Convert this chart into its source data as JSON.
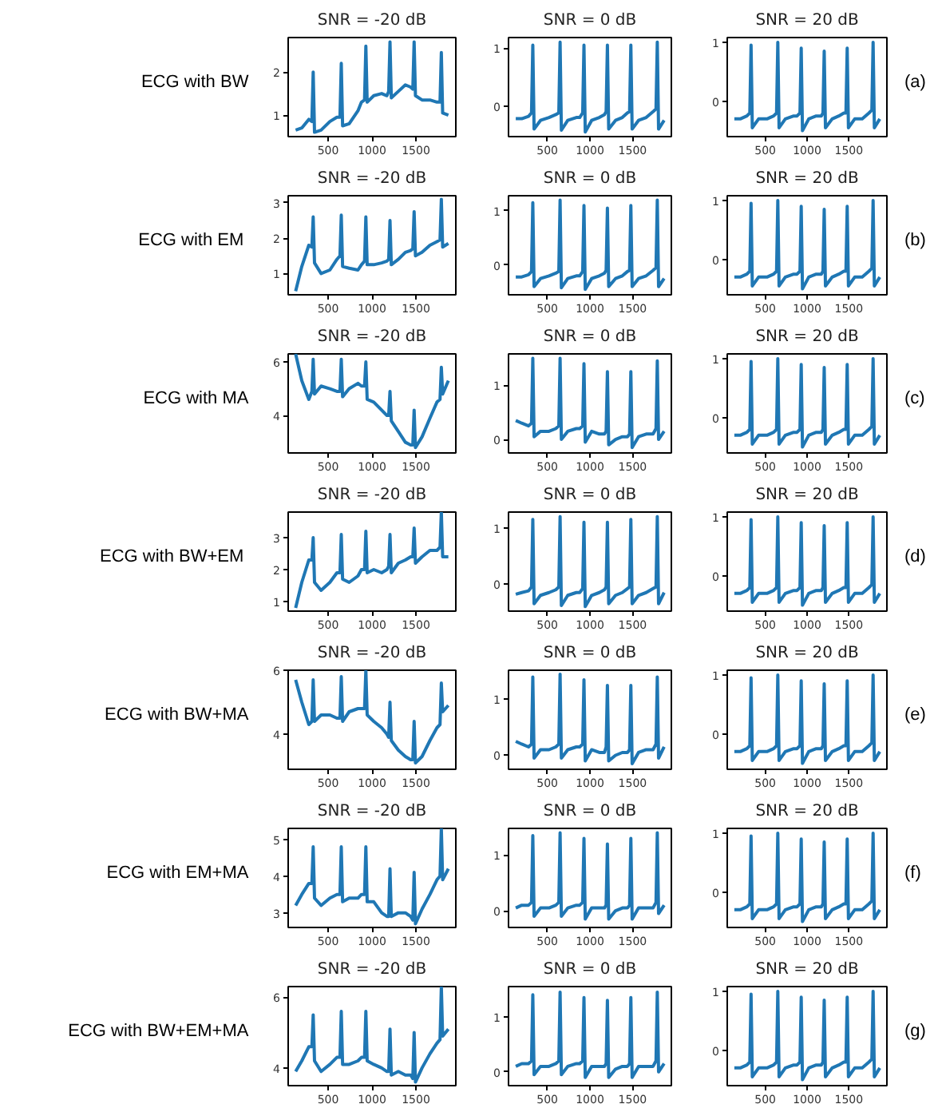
{
  "chart_data": [
    {
      "type": "line",
      "title": "SNR = -20 dB",
      "annotations": [
        "ECG with BW"
      ],
      "color": "#1f77b4",
      "xlim": [
        45,
        1955
      ],
      "xticks": [
        500,
        1000,
        1500
      ],
      "ylim": [
        0.5,
        2.8
      ],
      "yticks": [
        1,
        2
      ],
      "x": [
        130,
        200,
        280,
        315,
        330,
        345,
        420,
        520,
        600,
        635,
        650,
        665,
        740,
        840,
        880,
        915,
        930,
        945,
        1020,
        1110,
        1170,
        1190,
        1205,
        1220,
        1300,
        1380,
        1440,
        1465,
        1480,
        1495,
        1570,
        1660,
        1740,
        1775,
        1790,
        1805,
        1870
      ],
      "values": [
        0.65,
        0.7,
        0.9,
        0.85,
        2.0,
        0.6,
        0.65,
        0.85,
        0.95,
        0.95,
        2.2,
        0.75,
        0.8,
        1.1,
        1.3,
        1.35,
        2.6,
        1.3,
        1.45,
        1.5,
        1.45,
        1.55,
        2.7,
        1.4,
        1.55,
        1.7,
        1.65,
        1.6,
        2.7,
        1.45,
        1.35,
        1.35,
        1.3,
        1.3,
        2.45,
        1.05,
        1.0
      ]
    },
    {
      "type": "line",
      "title": "SNR = 0 dB",
      "color": "#1f77b4",
      "xlim": [
        45,
        1955
      ],
      "xticks": [
        500,
        1000,
        1500
      ],
      "ylim": [
        -0.53,
        1.18
      ],
      "yticks": [
        0,
        1
      ],
      "x": [
        130,
        200,
        280,
        315,
        330,
        345,
        420,
        520,
        600,
        635,
        650,
        665,
        740,
        840,
        880,
        915,
        930,
        945,
        1020,
        1110,
        1170,
        1190,
        1205,
        1220,
        1300,
        1380,
        1440,
        1465,
        1480,
        1495,
        1570,
        1660,
        1740,
        1775,
        1790,
        1805,
        1870
      ],
      "values": [
        -0.22,
        -0.22,
        -0.18,
        -0.12,
        1.05,
        -0.4,
        -0.25,
        -0.2,
        -0.15,
        -0.12,
        1.1,
        -0.42,
        -0.25,
        -0.2,
        -0.2,
        -0.12,
        1.05,
        -0.45,
        -0.25,
        -0.2,
        -0.15,
        -0.1,
        1.05,
        -0.4,
        -0.25,
        -0.2,
        -0.12,
        -0.1,
        1.05,
        -0.4,
        -0.25,
        -0.2,
        -0.1,
        -0.05,
        1.1,
        -0.4,
        -0.25
      ]
    },
    {
      "type": "line",
      "title": "SNR = 20 dB",
      "annotations": [
        "(a)"
      ],
      "color": "#1f77b4",
      "xlim": [
        45,
        1955
      ],
      "xticks": [
        500,
        1000,
        1500
      ],
      "ylim": [
        -0.6,
        1.08
      ],
      "yticks": [
        0,
        1
      ],
      "x": [
        130,
        200,
        280,
        315,
        330,
        345,
        420,
        520,
        600,
        635,
        650,
        665,
        740,
        840,
        880,
        915,
        930,
        945,
        1020,
        1110,
        1170,
        1190,
        1205,
        1220,
        1300,
        1380,
        1440,
        1465,
        1480,
        1495,
        1570,
        1660,
        1740,
        1775,
        1790,
        1805,
        1870
      ],
      "values": [
        -0.3,
        -0.3,
        -0.25,
        -0.2,
        0.95,
        -0.45,
        -0.3,
        -0.3,
        -0.25,
        -0.2,
        1.0,
        -0.45,
        -0.3,
        -0.25,
        -0.25,
        -0.2,
        0.9,
        -0.5,
        -0.3,
        -0.25,
        -0.25,
        -0.2,
        0.85,
        -0.45,
        -0.3,
        -0.25,
        -0.2,
        -0.2,
        0.9,
        -0.45,
        -0.3,
        -0.3,
        -0.2,
        -0.15,
        1.0,
        -0.45,
        -0.3
      ]
    },
    {
      "type": "line",
      "title": "SNR = -20 dB",
      "annotations": [
        "ECG  with EM"
      ],
      "color": "#1f77b4",
      "xlim": [
        45,
        1955
      ],
      "xticks": [
        500,
        1000,
        1500
      ],
      "ylim": [
        0.4,
        3.2
      ],
      "yticks": [
        1,
        2,
        3
      ],
      "x": [
        130,
        200,
        280,
        315,
        330,
        345,
        420,
        520,
        600,
        635,
        650,
        665,
        740,
        840,
        880,
        915,
        930,
        945,
        1020,
        1110,
        1170,
        1190,
        1205,
        1220,
        1300,
        1380,
        1440,
        1465,
        1480,
        1495,
        1570,
        1660,
        1740,
        1775,
        1790,
        1805,
        1870
      ],
      "values": [
        0.5,
        1.2,
        1.8,
        1.75,
        2.6,
        1.3,
        1.0,
        1.1,
        1.4,
        1.5,
        2.65,
        1.2,
        1.15,
        1.1,
        1.25,
        1.35,
        2.6,
        1.25,
        1.25,
        1.3,
        1.35,
        1.4,
        2.5,
        1.25,
        1.4,
        1.6,
        1.65,
        1.7,
        2.75,
        1.5,
        1.6,
        1.8,
        1.9,
        1.95,
        3.1,
        1.75,
        1.85
      ]
    },
    {
      "type": "line",
      "title": "SNR = 0 dB",
      "color": "#1f77b4",
      "xlim": [
        45,
        1955
      ],
      "xticks": [
        500,
        1000,
        1500
      ],
      "ylim": [
        -0.55,
        1.28
      ],
      "yticks": [
        0,
        1
      ],
      "x": [
        130,
        200,
        280,
        315,
        330,
        345,
        420,
        520,
        600,
        635,
        650,
        665,
        740,
        840,
        880,
        915,
        930,
        945,
        1020,
        1110,
        1170,
        1190,
        1205,
        1220,
        1300,
        1380,
        1440,
        1465,
        1480,
        1495,
        1570,
        1660,
        1740,
        1775,
        1790,
        1805,
        1870
      ],
      "values": [
        -0.22,
        -0.22,
        -0.18,
        -0.12,
        1.15,
        -0.4,
        -0.25,
        -0.2,
        -0.15,
        -0.12,
        1.2,
        -0.42,
        -0.25,
        -0.2,
        -0.2,
        -0.12,
        1.1,
        -0.45,
        -0.25,
        -0.2,
        -0.15,
        -0.1,
        1.05,
        -0.4,
        -0.25,
        -0.2,
        -0.12,
        -0.1,
        1.1,
        -0.4,
        -0.25,
        -0.2,
        -0.1,
        -0.05,
        1.2,
        -0.4,
        -0.25
      ]
    },
    {
      "type": "line",
      "title": "SNR = 20 dB",
      "annotations": [
        "(b)"
      ],
      "color": "#1f77b4",
      "xlim": [
        45,
        1955
      ],
      "xticks": [
        500,
        1000,
        1500
      ],
      "ylim": [
        -0.6,
        1.08
      ],
      "yticks": [
        0,
        1
      ],
      "x": [
        130,
        200,
        280,
        315,
        330,
        345,
        420,
        520,
        600,
        635,
        650,
        665,
        740,
        840,
        880,
        915,
        930,
        945,
        1020,
        1110,
        1170,
        1190,
        1205,
        1220,
        1300,
        1380,
        1440,
        1465,
        1480,
        1495,
        1570,
        1660,
        1740,
        1775,
        1790,
        1805,
        1870
      ],
      "values": [
        -0.3,
        -0.3,
        -0.25,
        -0.2,
        0.95,
        -0.45,
        -0.3,
        -0.3,
        -0.25,
        -0.2,
        1.0,
        -0.45,
        -0.3,
        -0.25,
        -0.25,
        -0.2,
        0.9,
        -0.5,
        -0.3,
        -0.25,
        -0.25,
        -0.2,
        0.85,
        -0.45,
        -0.3,
        -0.25,
        -0.2,
        -0.2,
        0.9,
        -0.45,
        -0.3,
        -0.3,
        -0.2,
        -0.15,
        1.0,
        -0.45,
        -0.3
      ]
    },
    {
      "type": "line",
      "title": "SNR = -20 dB",
      "annotations": [
        "ECG with MA"
      ],
      "color": "#1f77b4",
      "xlim": [
        45,
        1955
      ],
      "xticks": [
        500,
        1000,
        1500
      ],
      "ylim": [
        2.6,
        6.3
      ],
      "yticks": [
        4,
        6
      ],
      "x": [
        130,
        200,
        280,
        315,
        330,
        345,
        420,
        520,
        600,
        635,
        650,
        665,
        740,
        840,
        880,
        915,
        930,
        945,
        1020,
        1110,
        1170,
        1190,
        1205,
        1220,
        1300,
        1380,
        1440,
        1465,
        1480,
        1495,
        1570,
        1660,
        1740,
        1775,
        1790,
        1805,
        1870
      ],
      "values": [
        6.3,
        5.3,
        4.6,
        4.9,
        6.1,
        4.8,
        5.1,
        5.0,
        4.9,
        4.9,
        6.1,
        4.7,
        5.0,
        5.2,
        5.1,
        5.1,
        6.0,
        4.6,
        4.5,
        4.2,
        4.0,
        4.0,
        4.9,
        3.8,
        3.4,
        3.0,
        2.9,
        2.9,
        4.2,
        2.8,
        3.2,
        3.9,
        4.5,
        4.6,
        5.8,
        4.8,
        5.3
      ]
    },
    {
      "type": "line",
      "title": "SNR = 0 dB",
      "color": "#1f77b4",
      "xlim": [
        45,
        1955
      ],
      "xticks": [
        500,
        1000,
        1500
      ],
      "ylim": [
        -0.25,
        1.58
      ],
      "yticks": [
        0,
        1
      ],
      "x": [
        130,
        200,
        280,
        315,
        330,
        345,
        420,
        520,
        600,
        635,
        650,
        665,
        740,
        840,
        880,
        915,
        930,
        945,
        1020,
        1110,
        1170,
        1190,
        1205,
        1220,
        1300,
        1380,
        1440,
        1465,
        1480,
        1495,
        1570,
        1660,
        1740,
        1775,
        1790,
        1805,
        1870
      ],
      "values": [
        0.35,
        0.3,
        0.25,
        0.3,
        1.5,
        0.05,
        0.15,
        0.15,
        0.2,
        0.25,
        1.5,
        0.0,
        0.15,
        0.2,
        0.2,
        0.25,
        1.4,
        -0.05,
        0.15,
        0.1,
        0.1,
        0.15,
        1.25,
        -0.1,
        0.0,
        0.05,
        0.05,
        0.1,
        1.25,
        -0.15,
        0.05,
        0.1,
        0.1,
        0.2,
        1.45,
        0.0,
        0.15
      ]
    },
    {
      "type": "line",
      "title": "SNR = 20 dB",
      "annotations": [
        "(c)"
      ],
      "color": "#1f77b4",
      "xlim": [
        45,
        1955
      ],
      "xticks": [
        500,
        1000,
        1500
      ],
      "ylim": [
        -0.6,
        1.08
      ],
      "yticks": [
        0,
        1
      ],
      "x": [
        130,
        200,
        280,
        315,
        330,
        345,
        420,
        520,
        600,
        635,
        650,
        665,
        740,
        840,
        880,
        915,
        930,
        945,
        1020,
        1110,
        1170,
        1190,
        1205,
        1220,
        1300,
        1380,
        1440,
        1465,
        1480,
        1495,
        1570,
        1660,
        1740,
        1775,
        1790,
        1805,
        1870
      ],
      "values": [
        -0.3,
        -0.3,
        -0.25,
        -0.2,
        0.95,
        -0.45,
        -0.3,
        -0.3,
        -0.25,
        -0.2,
        1.0,
        -0.45,
        -0.3,
        -0.25,
        -0.25,
        -0.2,
        0.9,
        -0.5,
        -0.3,
        -0.25,
        -0.25,
        -0.2,
        0.85,
        -0.45,
        -0.3,
        -0.25,
        -0.2,
        -0.2,
        0.9,
        -0.45,
        -0.3,
        -0.3,
        -0.2,
        -0.15,
        1.0,
        -0.45,
        -0.3
      ]
    },
    {
      "type": "line",
      "title": "SNR = -20 dB",
      "annotations": [
        "ECG  with BW+EM"
      ],
      "color": "#1f77b4",
      "xlim": [
        45,
        1955
      ],
      "xticks": [
        500,
        1000,
        1500
      ],
      "ylim": [
        0.7,
        3.8
      ],
      "yticks": [
        1,
        2,
        3
      ],
      "x": [
        130,
        200,
        280,
        315,
        330,
        345,
        420,
        520,
        600,
        635,
        650,
        665,
        740,
        840,
        880,
        915,
        930,
        945,
        1020,
        1110,
        1170,
        1190,
        1205,
        1220,
        1300,
        1380,
        1440,
        1465,
        1480,
        1495,
        1570,
        1660,
        1740,
        1775,
        1790,
        1805,
        1870
      ],
      "values": [
        0.8,
        1.6,
        2.3,
        2.3,
        3.0,
        1.6,
        1.35,
        1.6,
        1.9,
        1.9,
        3.1,
        1.7,
        1.6,
        1.8,
        2.0,
        2.0,
        3.2,
        1.9,
        2.0,
        1.9,
        2.0,
        2.1,
        3.1,
        1.9,
        2.2,
        2.3,
        2.4,
        2.4,
        3.3,
        2.2,
        2.4,
        2.6,
        2.6,
        2.7,
        3.8,
        2.4,
        2.4
      ]
    },
    {
      "type": "line",
      "title": "SNR = 0 dB",
      "color": "#1f77b4",
      "xlim": [
        45,
        1955
      ],
      "xticks": [
        500,
        1000,
        1500
      ],
      "ylim": [
        -0.48,
        1.28
      ],
      "yticks": [
        0,
        1
      ],
      "x": [
        130,
        200,
        280,
        315,
        330,
        345,
        420,
        520,
        600,
        635,
        650,
        665,
        740,
        840,
        880,
        915,
        930,
        945,
        1020,
        1110,
        1170,
        1190,
        1205,
        1220,
        1300,
        1380,
        1440,
        1465,
        1480,
        1495,
        1570,
        1660,
        1740,
        1775,
        1790,
        1805,
        1870
      ],
      "values": [
        -0.18,
        -0.15,
        -0.12,
        -0.05,
        1.15,
        -0.35,
        -0.2,
        -0.15,
        -0.1,
        -0.05,
        1.2,
        -0.38,
        -0.2,
        -0.15,
        -0.15,
        -0.08,
        1.1,
        -0.4,
        -0.2,
        -0.15,
        -0.1,
        -0.05,
        1.1,
        -0.35,
        -0.2,
        -0.15,
        -0.08,
        -0.05,
        1.15,
        -0.35,
        -0.2,
        -0.15,
        -0.08,
        -0.05,
        1.2,
        -0.35,
        -0.15
      ]
    },
    {
      "type": "line",
      "title": "SNR = 20 dB",
      "annotations": [
        "(d)"
      ],
      "color": "#1f77b4",
      "xlim": [
        45,
        1955
      ],
      "xticks": [
        500,
        1000,
        1500
      ],
      "ylim": [
        -0.6,
        1.08
      ],
      "yticks": [
        0,
        1
      ],
      "x": [
        130,
        200,
        280,
        315,
        330,
        345,
        420,
        520,
        600,
        635,
        650,
        665,
        740,
        840,
        880,
        915,
        930,
        945,
        1020,
        1110,
        1170,
        1190,
        1205,
        1220,
        1300,
        1380,
        1440,
        1465,
        1480,
        1495,
        1570,
        1660,
        1740,
        1775,
        1790,
        1805,
        1870
      ],
      "values": [
        -0.3,
        -0.3,
        -0.25,
        -0.2,
        0.95,
        -0.45,
        -0.3,
        -0.3,
        -0.25,
        -0.2,
        1.0,
        -0.45,
        -0.3,
        -0.25,
        -0.25,
        -0.2,
        0.9,
        -0.5,
        -0.3,
        -0.25,
        -0.25,
        -0.2,
        0.85,
        -0.45,
        -0.3,
        -0.25,
        -0.2,
        -0.2,
        0.9,
        -0.45,
        -0.3,
        -0.3,
        -0.2,
        -0.15,
        1.0,
        -0.45,
        -0.3
      ]
    },
    {
      "type": "line",
      "title": "SNR = -20 dB",
      "annotations": [
        "ECG with BW+MA"
      ],
      "color": "#1f77b4",
      "xlim": [
        45,
        1955
      ],
      "xticks": [
        500,
        1000,
        1500
      ],
      "ylim": [
        2.9,
        6.0
      ],
      "yticks": [
        4,
        6
      ],
      "x": [
        130,
        200,
        280,
        315,
        330,
        345,
        420,
        520,
        600,
        635,
        650,
        665,
        740,
        840,
        880,
        915,
        930,
        945,
        1020,
        1110,
        1170,
        1190,
        1205,
        1220,
        1300,
        1380,
        1440,
        1465,
        1480,
        1495,
        1570,
        1660,
        1740,
        1775,
        1790,
        1805,
        1870
      ],
      "values": [
        5.7,
        5.0,
        4.3,
        4.4,
        5.7,
        4.4,
        4.6,
        4.6,
        4.5,
        4.5,
        5.8,
        4.4,
        4.7,
        4.8,
        4.8,
        4.8,
        6.0,
        4.6,
        4.4,
        4.2,
        4.0,
        3.9,
        5.0,
        3.8,
        3.5,
        3.3,
        3.2,
        3.2,
        4.4,
        3.1,
        3.3,
        3.8,
        4.2,
        4.3,
        5.6,
        4.7,
        4.9
      ]
    },
    {
      "type": "line",
      "title": "SNR = 0 dB",
      "color": "#1f77b4",
      "xlim": [
        45,
        1955
      ],
      "xticks": [
        500,
        1000,
        1500
      ],
      "ylim": [
        -0.25,
        1.52
      ],
      "yticks": [
        0,
        1
      ],
      "x": [
        130,
        200,
        280,
        315,
        330,
        345,
        420,
        520,
        600,
        635,
        650,
        665,
        740,
        840,
        880,
        915,
        930,
        945,
        1020,
        1110,
        1170,
        1190,
        1205,
        1220,
        1300,
        1380,
        1440,
        1465,
        1480,
        1495,
        1570,
        1660,
        1740,
        1775,
        1790,
        1805,
        1870
      ],
      "values": [
        0.25,
        0.2,
        0.15,
        0.2,
        1.4,
        -0.05,
        0.1,
        0.1,
        0.15,
        0.2,
        1.45,
        -0.05,
        0.1,
        0.15,
        0.15,
        0.2,
        1.35,
        -0.1,
        0.1,
        0.05,
        0.05,
        0.15,
        1.25,
        -0.1,
        0.0,
        0.05,
        0.05,
        0.1,
        1.25,
        -0.15,
        0.05,
        0.1,
        0.1,
        0.2,
        1.4,
        -0.05,
        0.15
      ]
    },
    {
      "type": "line",
      "title": "SNR = 20 dB",
      "annotations": [
        "(e)"
      ],
      "color": "#1f77b4",
      "xlim": [
        45,
        1955
      ],
      "xticks": [
        500,
        1000,
        1500
      ],
      "ylim": [
        -0.6,
        1.08
      ],
      "yticks": [
        0,
        1
      ],
      "x": [
        130,
        200,
        280,
        315,
        330,
        345,
        420,
        520,
        600,
        635,
        650,
        665,
        740,
        840,
        880,
        915,
        930,
        945,
        1020,
        1110,
        1170,
        1190,
        1205,
        1220,
        1300,
        1380,
        1440,
        1465,
        1480,
        1495,
        1570,
        1660,
        1740,
        1775,
        1790,
        1805,
        1870
      ],
      "values": [
        -0.3,
        -0.3,
        -0.25,
        -0.2,
        0.95,
        -0.45,
        -0.3,
        -0.3,
        -0.25,
        -0.2,
        1.0,
        -0.45,
        -0.3,
        -0.25,
        -0.25,
        -0.2,
        0.9,
        -0.5,
        -0.3,
        -0.25,
        -0.25,
        -0.2,
        0.85,
        -0.45,
        -0.3,
        -0.25,
        -0.2,
        -0.2,
        0.9,
        -0.45,
        -0.3,
        -0.3,
        -0.2,
        -0.15,
        1.0,
        -0.45,
        -0.3
      ]
    },
    {
      "type": "line",
      "title": "SNR = -20 dB",
      "annotations": [
        "ECG with EM+MA"
      ],
      "color": "#1f77b4",
      "xlim": [
        45,
        1955
      ],
      "xticks": [
        500,
        1000,
        1500
      ],
      "ylim": [
        2.6,
        5.3
      ],
      "yticks": [
        3,
        4,
        5
      ],
      "x": [
        130,
        200,
        280,
        315,
        330,
        345,
        420,
        520,
        600,
        635,
        650,
        665,
        740,
        840,
        880,
        915,
        930,
        945,
        1020,
        1110,
        1170,
        1190,
        1205,
        1220,
        1300,
        1380,
        1440,
        1465,
        1480,
        1495,
        1570,
        1660,
        1740,
        1775,
        1790,
        1805,
        1870
      ],
      "values": [
        3.2,
        3.5,
        3.8,
        3.8,
        4.8,
        3.4,
        3.2,
        3.4,
        3.5,
        3.5,
        4.8,
        3.3,
        3.4,
        3.4,
        3.5,
        3.5,
        4.8,
        3.3,
        3.3,
        3.0,
        2.9,
        2.9,
        4.2,
        2.9,
        3.0,
        3.0,
        2.9,
        2.8,
        4.1,
        2.7,
        3.1,
        3.5,
        3.9,
        4.0,
        5.3,
        3.9,
        4.2
      ]
    },
    {
      "type": "line",
      "title": "SNR = 0 dB",
      "color": "#1f77b4",
      "xlim": [
        45,
        1955
      ],
      "xticks": [
        500,
        1000,
        1500
      ],
      "ylim": [
        -0.3,
        1.48
      ],
      "yticks": [
        0,
        1
      ],
      "x": [
        130,
        200,
        280,
        315,
        330,
        345,
        420,
        520,
        600,
        635,
        650,
        665,
        740,
        840,
        880,
        915,
        930,
        945,
        1020,
        1110,
        1170,
        1190,
        1205,
        1220,
        1300,
        1380,
        1440,
        1465,
        1480,
        1495,
        1570,
        1660,
        1740,
        1775,
        1790,
        1805,
        1870
      ],
      "values": [
        0.05,
        0.1,
        0.1,
        0.15,
        1.35,
        -0.1,
        0.05,
        0.05,
        0.1,
        0.15,
        1.4,
        -0.1,
        0.05,
        0.1,
        0.1,
        0.15,
        1.3,
        -0.15,
        0.05,
        0.05,
        0.05,
        0.1,
        1.2,
        -0.15,
        0.0,
        0.05,
        0.05,
        0.1,
        1.3,
        -0.15,
        0.05,
        0.05,
        0.05,
        0.15,
        1.4,
        -0.05,
        0.1
      ]
    },
    {
      "type": "line",
      "title": "SNR = 20 dB",
      "annotations": [
        "(f)"
      ],
      "color": "#1f77b4",
      "xlim": [
        45,
        1955
      ],
      "xticks": [
        500,
        1000,
        1500
      ],
      "ylim": [
        -0.6,
        1.08
      ],
      "yticks": [
        0,
        1
      ],
      "x": [
        130,
        200,
        280,
        315,
        330,
        345,
        420,
        520,
        600,
        635,
        650,
        665,
        740,
        840,
        880,
        915,
        930,
        945,
        1020,
        1110,
        1170,
        1190,
        1205,
        1220,
        1300,
        1380,
        1440,
        1465,
        1480,
        1495,
        1570,
        1660,
        1740,
        1775,
        1790,
        1805,
        1870
      ],
      "values": [
        -0.3,
        -0.3,
        -0.25,
        -0.2,
        0.95,
        -0.45,
        -0.3,
        -0.3,
        -0.25,
        -0.2,
        1.0,
        -0.45,
        -0.3,
        -0.25,
        -0.25,
        -0.2,
        0.9,
        -0.5,
        -0.3,
        -0.25,
        -0.25,
        -0.2,
        0.85,
        -0.45,
        -0.3,
        -0.25,
        -0.2,
        -0.2,
        0.9,
        -0.45,
        -0.3,
        -0.3,
        -0.2,
        -0.15,
        1.0,
        -0.45,
        -0.3
      ]
    },
    {
      "type": "line",
      "title": "SNR = -20 dB",
      "annotations": [
        "ECG with BW+EM+MA"
      ],
      "color": "#1f77b4",
      "xlim": [
        45,
        1955
      ],
      "xticks": [
        500,
        1000,
        1500
      ],
      "ylim": [
        3.5,
        6.3
      ],
      "yticks": [
        4,
        6
      ],
      "x": [
        130,
        200,
        280,
        315,
        330,
        345,
        420,
        520,
        600,
        635,
        650,
        665,
        740,
        840,
        880,
        915,
        930,
        945,
        1020,
        1110,
        1170,
        1190,
        1205,
        1220,
        1300,
        1380,
        1440,
        1465,
        1480,
        1495,
        1570,
        1660,
        1740,
        1775,
        1790,
        1805,
        1870
      ],
      "values": [
        3.9,
        4.2,
        4.6,
        4.6,
        5.5,
        4.2,
        3.9,
        4.1,
        4.3,
        4.3,
        5.6,
        4.1,
        4.1,
        4.2,
        4.3,
        4.3,
        5.6,
        4.2,
        4.1,
        4.0,
        3.9,
        3.9,
        5.1,
        3.8,
        3.9,
        3.8,
        3.8,
        3.7,
        5.0,
        3.6,
        4.0,
        4.4,
        4.7,
        4.8,
        6.3,
        4.9,
        5.1
      ]
    },
    {
      "type": "line",
      "title": "SNR = 0 dB",
      "color": "#1f77b4",
      "xlim": [
        45,
        1955
      ],
      "xticks": [
        500,
        1000,
        1500
      ],
      "ylim": [
        -0.25,
        1.55
      ],
      "yticks": [
        0,
        1
      ],
      "x": [
        130,
        200,
        280,
        315,
        330,
        345,
        420,
        520,
        600,
        635,
        650,
        665,
        740,
        840,
        880,
        915,
        930,
        945,
        1020,
        1110,
        1170,
        1190,
        1205,
        1220,
        1300,
        1380,
        1440,
        1465,
        1480,
        1495,
        1570,
        1660,
        1740,
        1775,
        1790,
        1805,
        1870
      ],
      "values": [
        0.1,
        0.15,
        0.15,
        0.2,
        1.4,
        -0.05,
        0.1,
        0.1,
        0.15,
        0.2,
        1.45,
        -0.05,
        0.1,
        0.15,
        0.15,
        0.2,
        1.35,
        -0.1,
        0.1,
        0.1,
        0.1,
        0.15,
        1.3,
        -0.1,
        0.05,
        0.1,
        0.1,
        0.15,
        1.35,
        -0.1,
        0.1,
        0.1,
        0.1,
        0.2,
        1.45,
        0.0,
        0.15
      ]
    },
    {
      "type": "line",
      "title": "SNR = 20 dB",
      "annotations": [
        "(g)"
      ],
      "color": "#1f77b4",
      "xlim": [
        45,
        1955
      ],
      "xticks": [
        500,
        1000,
        1500
      ],
      "ylim": [
        -0.6,
        1.08
      ],
      "yticks": [
        0,
        1
      ],
      "x": [
        130,
        200,
        280,
        315,
        330,
        345,
        420,
        520,
        600,
        635,
        650,
        665,
        740,
        840,
        880,
        915,
        930,
        945,
        1020,
        1110,
        1170,
        1190,
        1205,
        1220,
        1300,
        1380,
        1440,
        1465,
        1480,
        1495,
        1570,
        1660,
        1740,
        1775,
        1790,
        1805,
        1870
      ],
      "values": [
        -0.3,
        -0.3,
        -0.25,
        -0.2,
        0.95,
        -0.45,
        -0.3,
        -0.3,
        -0.25,
        -0.2,
        1.0,
        -0.45,
        -0.3,
        -0.25,
        -0.25,
        -0.2,
        0.9,
        -0.5,
        -0.3,
        -0.25,
        -0.25,
        -0.2,
        0.85,
        -0.45,
        -0.3,
        -0.25,
        -0.2,
        -0.2,
        0.9,
        -0.45,
        -0.3,
        -0.3,
        -0.2,
        -0.15,
        1.0,
        -0.45,
        -0.3
      ]
    }
  ]
}
